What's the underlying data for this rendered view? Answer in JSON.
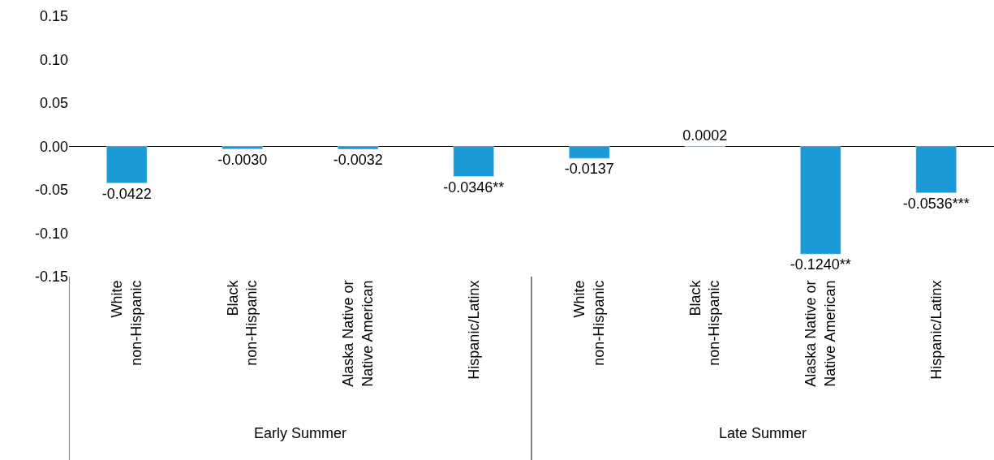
{
  "chart_data": {
    "type": "bar",
    "categories": [
      "White\nnon-Hispanic",
      "Black\nnon-Hispanic",
      "Alaska Native or\nNative American",
      "Hispanic/Latinx",
      "White\nnon-Hispanic",
      "Black\nnon-Hispanic",
      "Alaska Native or\nNative American",
      "Hispanic/Latinx"
    ],
    "values": [
      -0.0422,
      -0.003,
      -0.0032,
      -0.0346,
      -0.0137,
      0.0002,
      -0.124,
      -0.0536
    ],
    "value_labels": [
      "-0.0422",
      "-0.0030",
      "-0.0032",
      "-0.0346**",
      "-0.0137",
      "0.0002",
      "-0.1240**",
      "-0.0536***"
    ],
    "color": "#1a9ad6",
    "ylim": [
      -0.15,
      0.15
    ],
    "yticks": [
      {
        "value": -0.15,
        "label": "-0.15"
      },
      {
        "value": -0.1,
        "label": "-0.10"
      },
      {
        "value": -0.05,
        "label": "-0.05"
      },
      {
        "value": 0,
        "label": "0.00"
      },
      {
        "value": 0.05,
        "label": "0.05"
      },
      {
        "value": 0.1,
        "label": "0.10"
      },
      {
        "value": 0.15,
        "label": "0.15"
      }
    ],
    "annotations": [
      "Early Summer",
      "Late Summer"
    ]
  }
}
